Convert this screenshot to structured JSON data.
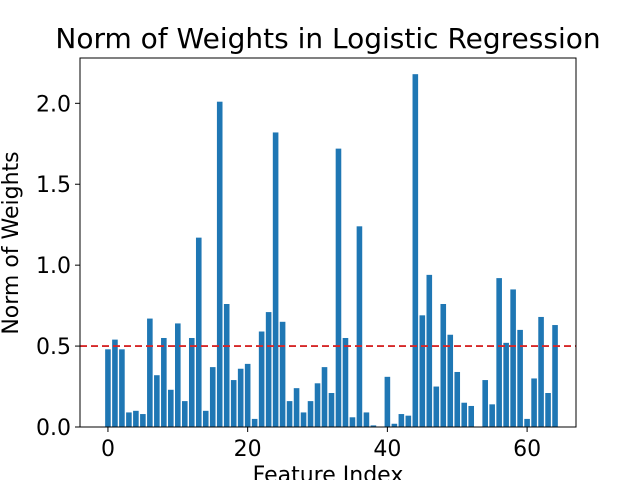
{
  "chart_data": {
    "type": "bar",
    "title": "Norm of Weights in Logistic Regression",
    "xlabel": "Feature Index",
    "ylabel": "Norm of Weights",
    "xlim": [
      -4,
      67
    ],
    "ylim": [
      0,
      2.28
    ],
    "xticks": [
      0,
      20,
      40,
      60
    ],
    "yticks": [
      0.0,
      0.5,
      1.0,
      1.5,
      2.0
    ],
    "ytick_labels": [
      "0.0",
      "0.5",
      "1.0",
      "1.5",
      "2.0"
    ],
    "bar_color": "#1f77b4",
    "threshold": {
      "value": 0.5,
      "color": "#d62728",
      "style": "dashed"
    },
    "grid": false,
    "x": [
      0,
      1,
      2,
      3,
      4,
      5,
      6,
      7,
      8,
      9,
      10,
      11,
      12,
      13,
      14,
      15,
      16,
      17,
      18,
      19,
      20,
      21,
      22,
      23,
      24,
      25,
      26,
      27,
      28,
      29,
      30,
      31,
      32,
      33,
      34,
      35,
      36,
      37,
      38,
      39,
      40,
      41,
      42,
      43,
      44,
      45,
      46,
      47,
      48,
      49,
      50,
      51,
      52,
      53,
      54,
      55,
      56,
      57,
      58,
      59,
      60,
      61,
      62,
      63,
      64
    ],
    "values": [
      0.48,
      0.54,
      0.48,
      0.09,
      0.1,
      0.08,
      0.67,
      0.32,
      0.55,
      0.23,
      0.64,
      0.16,
      0.55,
      1.17,
      0.1,
      0.37,
      2.01,
      0.76,
      0.29,
      0.36,
      0.39,
      0.05,
      0.59,
      0.71,
      1.82,
      0.65,
      0.16,
      0.24,
      0.09,
      0.16,
      0.27,
      0.37,
      0.21,
      1.72,
      0.55,
      0.06,
      1.24,
      0.09,
      0.01,
      0.0,
      0.31,
      0.02,
      0.08,
      0.07,
      2.18,
      0.69,
      0.94,
      0.25,
      0.76,
      0.57,
      0.34,
      0.15,
      0.13,
      0.0,
      0.29,
      0.14,
      0.92,
      0.52,
      0.85,
      0.6,
      0.05,
      0.3,
      0.68,
      0.21,
      0.63
    ]
  }
}
